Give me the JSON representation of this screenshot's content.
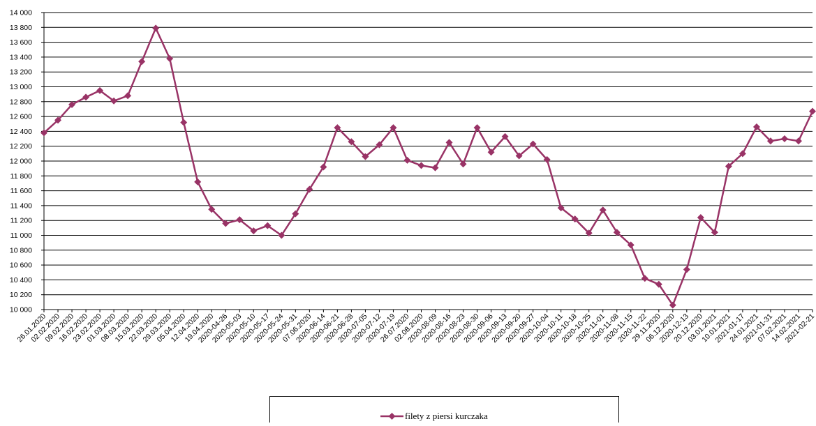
{
  "chart_data": {
    "type": "line",
    "categories": [
      "26.01.2020",
      "02.02.2020",
      "09.02.2020",
      "16.02.2020",
      "23.02.2020",
      "01.03.2020",
      "08.03.2020",
      "15.03.2020",
      "22.03.2020",
      "29.03.2020",
      "05.04.2020",
      "12.04.2020",
      "19.04.2020",
      "2020-04-26",
      "2020-05-03",
      "2020-05-10",
      "2020-05-17",
      "2020-05-24",
      "2020-05-31",
      "07.06.2020",
      "2020-06-14",
      "2020-06-21",
      "2020-06-28",
      "2020-07-05",
      "2020-07-12",
      "2020-07-19",
      "26.07.2020",
      "02.08.2020",
      "2020-08-09",
      "2020-08-16",
      "2020-08-23",
      "2020-08-30",
      "2020-09-06",
      "2020-09-13",
      "2020-09-20",
      "2020-09-27",
      "2020-10-04",
      "2020-10-11",
      "2020-10-18",
      "2020-10-25",
      "2020-11-01",
      "2020-11-08",
      "2020-11-15",
      "2020-11-22",
      "29.11.2020",
      "06.12.2020",
      "2020-12-13",
      "20.12.2020",
      "03.01.2021",
      "10.01.2021",
      "2021-01-17",
      "24.01.2021",
      "2021-01-31",
      "07.02.2021",
      "14.02.2021",
      "2021-02-21"
    ],
    "series": [
      {
        "name": "filety z piersi kurczaka",
        "color": "#993366",
        "values": [
          12380,
          12550,
          12760,
          12860,
          12950,
          12810,
          12880,
          13340,
          13790,
          13380,
          12520,
          11720,
          11350,
          11160,
          11210,
          11060,
          11130,
          11000,
          11290,
          11620,
          11920,
          12450,
          12260,
          12060,
          12220,
          12450,
          12010,
          11940,
          11910,
          12250,
          11960,
          12450,
          12120,
          12330,
          12070,
          12230,
          12020,
          11370,
          11220,
          11030,
          11340,
          11040,
          10870,
          10420,
          10340,
          10060,
          10540,
          11240,
          11040,
          11930,
          12100,
          12460,
          12270,
          12300,
          12270,
          12670
        ]
      }
    ],
    "ylim": [
      10000,
      14000
    ],
    "yticks": [
      {
        "value": 10000,
        "label": "10 000"
      },
      {
        "value": 10200,
        "label": "10 200"
      },
      {
        "value": 10400,
        "label": "10 400"
      },
      {
        "value": 10600,
        "label": "10 600"
      },
      {
        "value": 10800,
        "label": "10 800"
      },
      {
        "value": 11000,
        "label": "11 000"
      },
      {
        "value": 11200,
        "label": "11 200"
      },
      {
        "value": 11400,
        "label": "11 400"
      },
      {
        "value": 11600,
        "label": "11 600"
      },
      {
        "value": 11800,
        "label": "11 800"
      },
      {
        "value": 12000,
        "label": "12 000"
      },
      {
        "value": 12200,
        "label": "12 200"
      },
      {
        "value": 12400,
        "label": "12 400"
      },
      {
        "value": 12600,
        "label": "12 600"
      },
      {
        "value": 12800,
        "label": "12 800"
      },
      {
        "value": 13000,
        "label": "13 000"
      },
      {
        "value": 13200,
        "label": "13 200"
      },
      {
        "value": 13400,
        "label": "13 400"
      },
      {
        "value": 13600,
        "label": "13 600"
      },
      {
        "value": 13800,
        "label": "13 800"
      },
      {
        "value": 14000,
        "label": "14 000"
      }
    ],
    "grid": true,
    "legend": "bottom"
  }
}
